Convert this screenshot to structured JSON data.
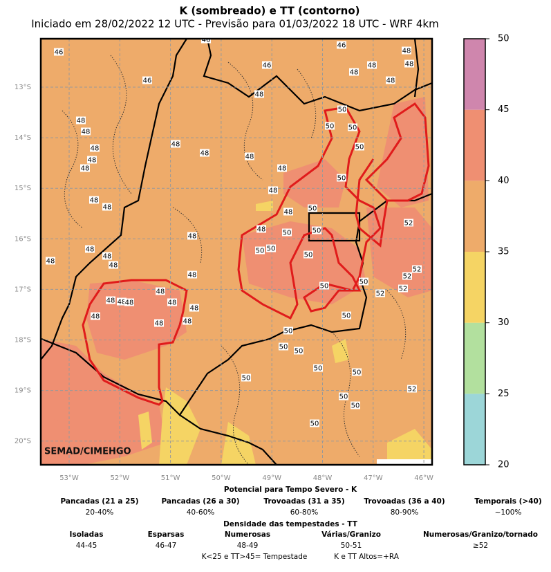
{
  "header": {
    "title": "K (sombreado) e TT (contorno)",
    "subtitle": "Iniciado em 28/02/2022 12 UTC - Previsão para 01/03/2022 18 UTC - WRF 4km"
  },
  "map": {
    "lat_labels": [
      "13°S",
      "14°S",
      "15°S",
      "16°S",
      "17°S",
      "18°S",
      "19°S",
      "20°S"
    ],
    "lon_labels": [
      "53°W",
      "52°W",
      "51°W",
      "50°W",
      "49°W",
      "48°W",
      "47°W",
      "46°W"
    ],
    "watermark": "SEMAD/CIMEHGO",
    "contour_labels": [
      "46",
      "46",
      "46",
      "46",
      "46",
      "48",
      "48",
      "48",
      "48",
      "48",
      "48",
      "48",
      "48",
      "48",
      "48",
      "48",
      "48",
      "48",
      "48",
      "48",
      "48",
      "48",
      "48",
      "48",
      "48",
      "48",
      "48",
      "48",
      "48",
      "48",
      "48",
      "48",
      "48",
      "48",
      "48",
      "48",
      "48",
      "48",
      "48",
      "48",
      "50",
      "50",
      "50",
      "50",
      "50",
      "50",
      "50",
      "50",
      "50",
      "50",
      "50",
      "50",
      "50",
      "50",
      "50",
      "50",
      "50",
      "50",
      "50",
      "50",
      "50",
      "50",
      "50",
      "52",
      "52",
      "52",
      "52",
      "52",
      "52"
    ]
  },
  "colorbar": {
    "lim": [
      20,
      50
    ],
    "ticks": [
      20,
      25,
      30,
      35,
      40,
      45,
      50
    ],
    "colors": [
      "#9cd6d8",
      "#b2e09e",
      "#f5d464",
      "#eeab6a",
      "#ef8f72",
      "#cf86ad"
    ]
  },
  "legend": {
    "k_title": "Potencial para Tempo Severo - K",
    "k_items": [
      {
        "label": "Pancadas (21 a 25)",
        "value": "20-40%"
      },
      {
        "label": "Pancadas (26 a 30)",
        "value": "40-60%"
      },
      {
        "label": "Trovoadas (31 a 35)",
        "value": "60-80%"
      },
      {
        "label": "Trovoadas (36 a 40)",
        "value": "80-90%"
      },
      {
        "label": "Temporais (>40)",
        "value": "~100%"
      }
    ],
    "tt_title": "Densidade das tempestades - TT",
    "tt_items": [
      {
        "label": "Isoladas",
        "value": "44-45"
      },
      {
        "label": "Esparsas",
        "value": "46-47"
      },
      {
        "label": "Numerosas",
        "value": "48-49"
      },
      {
        "label": "Várias/Granizo",
        "value": "50-51"
      },
      {
        "label": "Numerosas/Granizo/tornado",
        "value": "≥52"
      }
    ],
    "notes": [
      "K<25 e TT>45= Tempestade",
      "K e TT Altos=+RA"
    ]
  }
}
